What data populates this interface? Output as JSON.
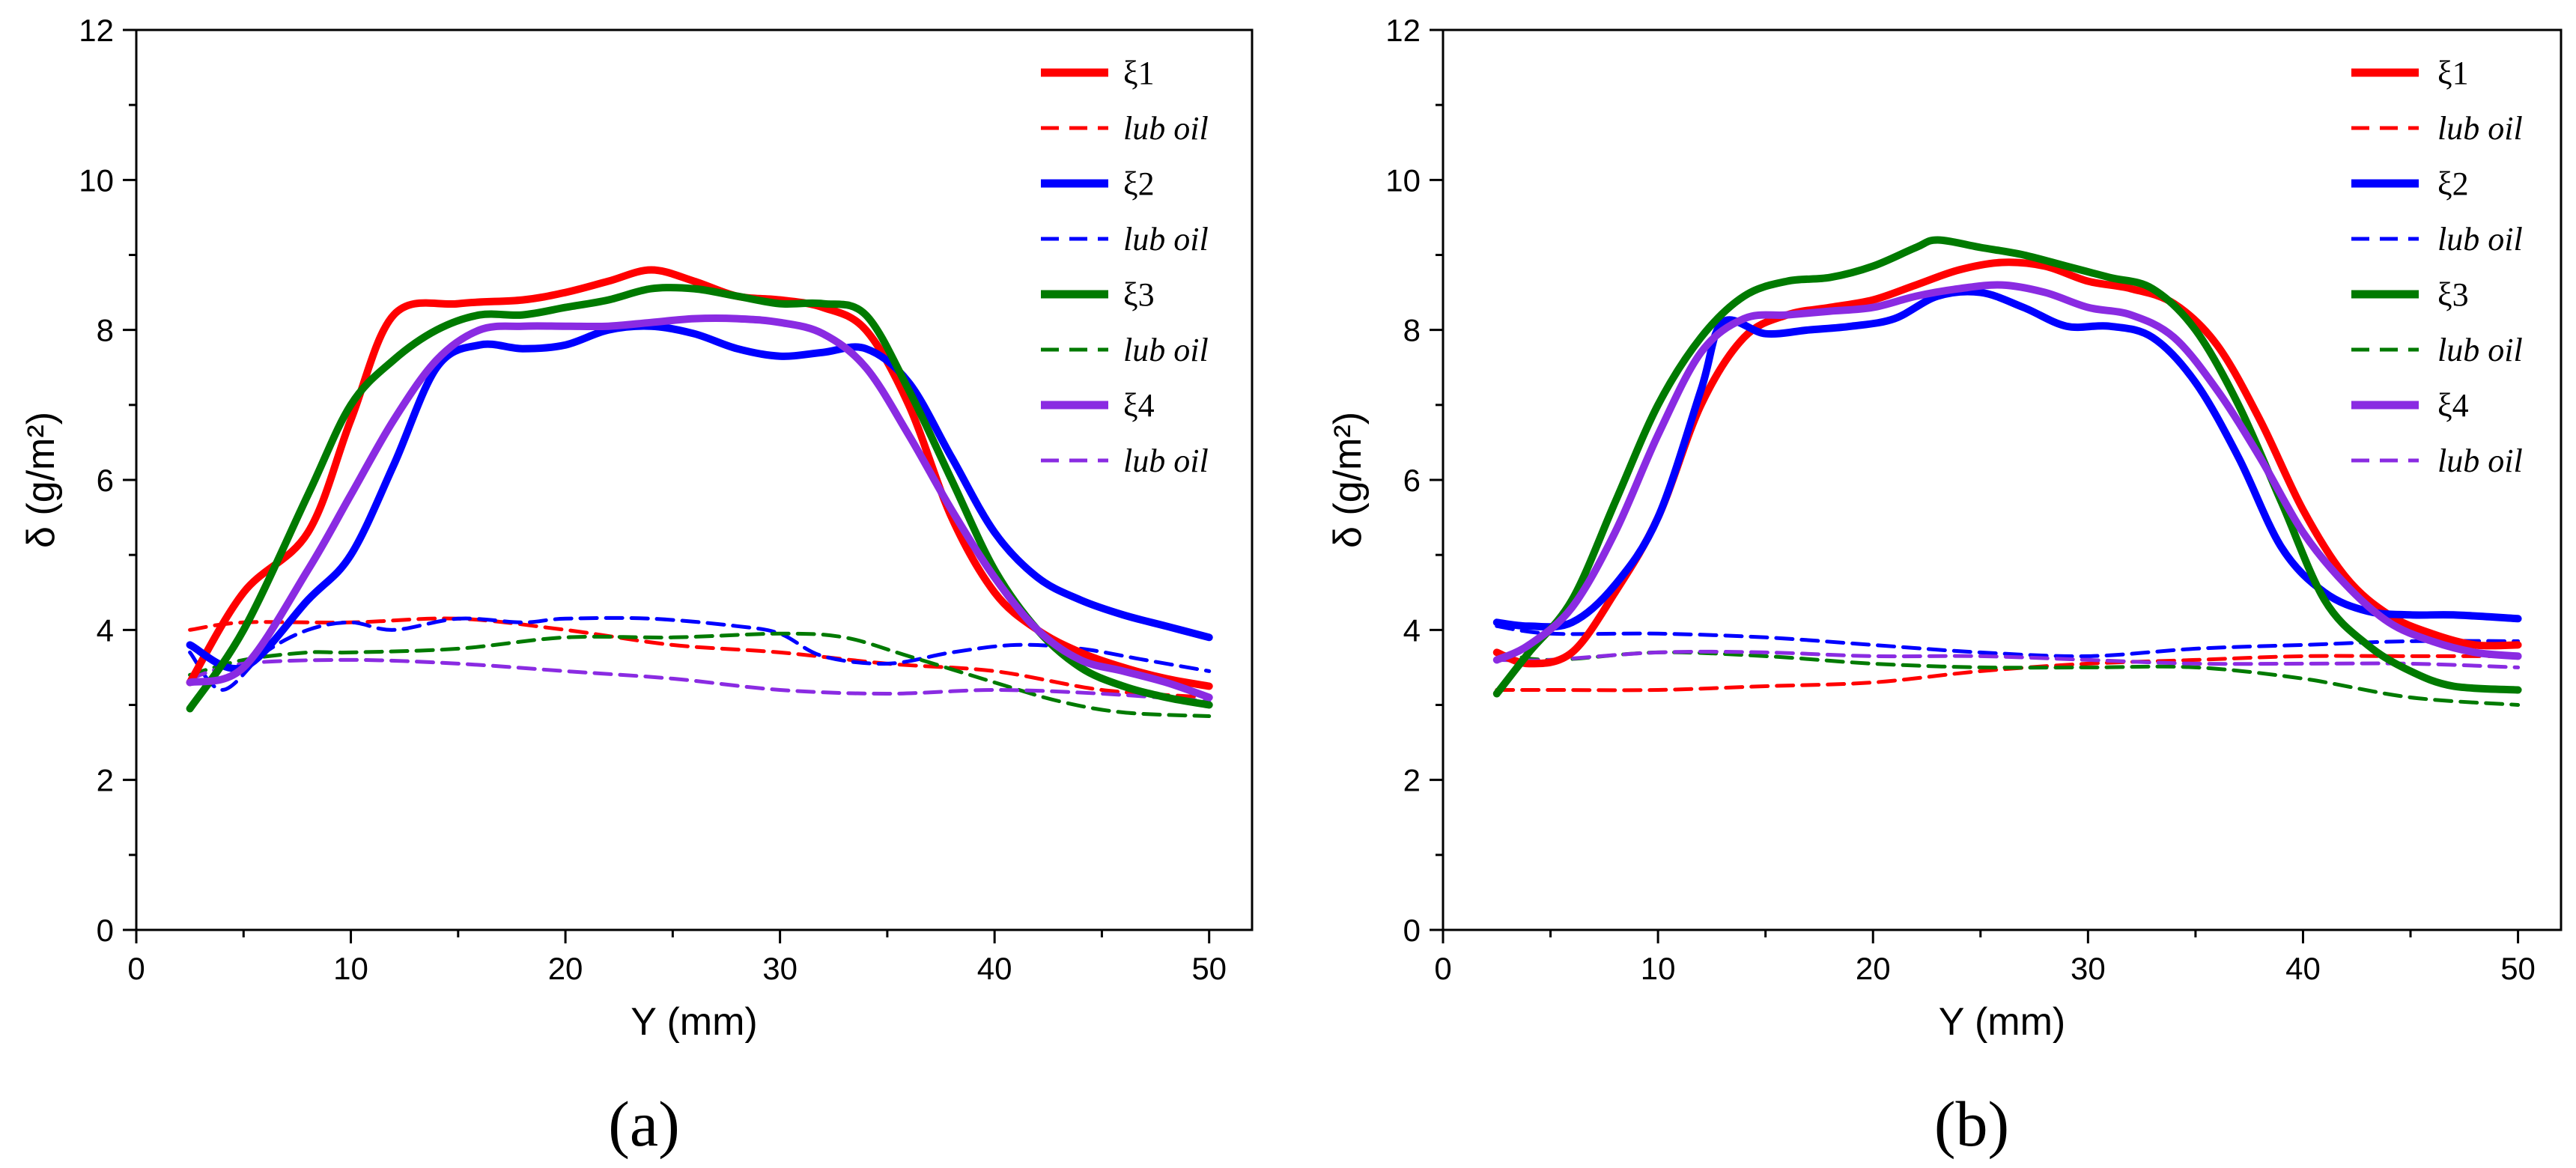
{
  "chart_data": [
    {
      "type": "line",
      "panel_label": "(a)",
      "xlabel": "Y (mm)",
      "ylabel": "δ (g/m²)",
      "xlim": [
        0,
        52
      ],
      "ylim": [
        0,
        12
      ],
      "xticks": [
        0,
        10,
        20,
        30,
        40,
        50
      ],
      "yticks": [
        0,
        2,
        4,
        6,
        8,
        10,
        12
      ],
      "legend_position": "top-right",
      "series": [
        {
          "name": "ξ1",
          "color": "#ff0000",
          "style": "solid",
          "x": [
            2.5,
            5,
            8,
            10,
            12,
            15,
            18,
            20,
            22,
            24,
            26,
            28,
            30,
            32,
            34,
            36,
            38,
            40,
            42,
            44,
            46,
            48,
            50
          ],
          "y": [
            3.3,
            4.5,
            5.3,
            6.8,
            8.2,
            8.35,
            8.4,
            8.5,
            8.65,
            8.8,
            8.65,
            8.45,
            8.4,
            8.3,
            8.0,
            7.0,
            5.5,
            4.5,
            4.0,
            3.7,
            3.5,
            3.35,
            3.25
          ]
        },
        {
          "name": "lub oil",
          "color": "#ff0000",
          "style": "dashed",
          "x": [
            2.5,
            5,
            10,
            15,
            20,
            25,
            30,
            35,
            40,
            45,
            50
          ],
          "y": [
            4.0,
            4.1,
            4.1,
            4.15,
            4.0,
            3.8,
            3.7,
            3.55,
            3.45,
            3.2,
            3.1
          ]
        },
        {
          "name": "ξ2",
          "color": "#0000ff",
          "style": "solid",
          "x": [
            2.5,
            5,
            8,
            10,
            12,
            14,
            16,
            18,
            20,
            22,
            24,
            26,
            28,
            30,
            32,
            34,
            36,
            38,
            40,
            42,
            44,
            46,
            48,
            50
          ],
          "y": [
            3.8,
            3.5,
            4.4,
            5.0,
            6.2,
            7.5,
            7.8,
            7.75,
            7.8,
            8.0,
            8.05,
            7.95,
            7.75,
            7.65,
            7.7,
            7.75,
            7.3,
            6.3,
            5.3,
            4.7,
            4.4,
            4.2,
            4.05,
            3.9
          ]
        },
        {
          "name": "lub oil",
          "color": "#0000ff",
          "style": "dashed",
          "x": [
            2.5,
            4,
            6,
            8,
            10,
            12,
            15,
            18,
            20,
            24,
            28,
            30,
            32,
            35,
            38,
            41,
            44,
            47,
            50
          ],
          "y": [
            3.7,
            3.2,
            3.7,
            4.0,
            4.1,
            4.0,
            4.15,
            4.1,
            4.15,
            4.15,
            4.05,
            3.95,
            3.65,
            3.55,
            3.7,
            3.8,
            3.75,
            3.6,
            3.45
          ]
        },
        {
          "name": "ξ3",
          "color": "#007a00",
          "style": "solid",
          "x": [
            2.5,
            5,
            8,
            10,
            12,
            14,
            16,
            18,
            20,
            22,
            24,
            26,
            28,
            30,
            32,
            34,
            36,
            38,
            40,
            42,
            44,
            46,
            48,
            50
          ],
          "y": [
            2.95,
            4.0,
            5.8,
            7.0,
            7.6,
            8.0,
            8.2,
            8.2,
            8.3,
            8.4,
            8.55,
            8.55,
            8.45,
            8.35,
            8.35,
            8.2,
            7.2,
            6.0,
            4.8,
            4.0,
            3.5,
            3.25,
            3.1,
            3.0
          ]
        },
        {
          "name": "lub oil",
          "color": "#007a00",
          "style": "dashed",
          "x": [
            2.5,
            5,
            8,
            10,
            15,
            20,
            25,
            30,
            33,
            36,
            40,
            43,
            46,
            50
          ],
          "y": [
            3.4,
            3.6,
            3.7,
            3.7,
            3.75,
            3.9,
            3.9,
            3.95,
            3.9,
            3.65,
            3.3,
            3.05,
            2.9,
            2.85
          ]
        },
        {
          "name": "ξ4",
          "color": "#8a2be2",
          "style": "solid",
          "x": [
            2.5,
            5,
            8,
            10,
            12,
            14,
            16,
            18,
            20,
            22,
            24,
            26,
            28,
            30,
            32,
            34,
            36,
            38,
            40,
            42,
            44,
            46,
            48,
            50
          ],
          "y": [
            3.3,
            3.5,
            4.8,
            5.8,
            6.8,
            7.6,
            8.0,
            8.05,
            8.05,
            8.05,
            8.1,
            8.15,
            8.15,
            8.1,
            7.95,
            7.5,
            6.6,
            5.6,
            4.7,
            4.0,
            3.6,
            3.45,
            3.3,
            3.1
          ]
        },
        {
          "name": "lub oil",
          "color": "#8a2be2",
          "style": "dashed",
          "x": [
            2.5,
            5,
            10,
            15,
            20,
            25,
            30,
            35,
            40,
            45,
            50
          ],
          "y": [
            3.35,
            3.55,
            3.6,
            3.55,
            3.45,
            3.35,
            3.2,
            3.15,
            3.2,
            3.15,
            3.05
          ]
        }
      ]
    },
    {
      "type": "line",
      "panel_label": "(b)",
      "xlabel": "Y (mm)",
      "ylabel": "δ (g/m²)",
      "xlim": [
        0,
        52
      ],
      "ylim": [
        0,
        12
      ],
      "xticks": [
        0,
        10,
        20,
        30,
        40,
        50
      ],
      "yticks": [
        0,
        2,
        4,
        6,
        8,
        10,
        12
      ],
      "legend_position": "top-right",
      "series": [
        {
          "name": "ξ1",
          "color": "#ff0000",
          "style": "solid",
          "x": [
            2.5,
            4,
            6,
            8,
            10,
            12,
            14,
            16,
            18,
            20,
            22,
            24,
            26,
            28,
            30,
            32,
            34,
            36,
            38,
            40,
            42,
            44,
            46,
            48,
            50
          ],
          "y": [
            3.7,
            3.55,
            3.7,
            4.5,
            5.5,
            7.0,
            7.9,
            8.2,
            8.3,
            8.4,
            8.6,
            8.8,
            8.9,
            8.85,
            8.65,
            8.55,
            8.35,
            7.8,
            6.8,
            5.6,
            4.7,
            4.2,
            3.95,
            3.8,
            3.8
          ]
        },
        {
          "name": "lub oil",
          "color": "#ff0000",
          "style": "dashed",
          "x": [
            2.5,
            5,
            10,
            15,
            20,
            25,
            30,
            35,
            40,
            45,
            50
          ],
          "y": [
            3.2,
            3.2,
            3.2,
            3.25,
            3.3,
            3.45,
            3.55,
            3.6,
            3.65,
            3.65,
            3.65
          ]
        },
        {
          "name": "ξ2",
          "color": "#0000ff",
          "style": "solid",
          "x": [
            2.5,
            4,
            6,
            8,
            10,
            12,
            13,
            15,
            17,
            19,
            21,
            23,
            25,
            27,
            29,
            31,
            33,
            35,
            37,
            39,
            41,
            43,
            45,
            47,
            50
          ],
          "y": [
            4.1,
            4.05,
            4.1,
            4.6,
            5.5,
            7.2,
            8.1,
            7.95,
            8.0,
            8.05,
            8.15,
            8.45,
            8.5,
            8.3,
            8.05,
            8.05,
            7.9,
            7.3,
            6.3,
            5.1,
            4.5,
            4.25,
            4.2,
            4.2,
            4.15
          ]
        },
        {
          "name": "lub oil",
          "color": "#0000ff",
          "style": "dashed",
          "x": [
            2.5,
            5,
            10,
            15,
            20,
            25,
            30,
            35,
            40,
            45,
            50
          ],
          "y": [
            4.05,
            3.95,
            3.95,
            3.9,
            3.8,
            3.7,
            3.65,
            3.75,
            3.8,
            3.85,
            3.85
          ]
        },
        {
          "name": "ξ3",
          "color": "#007a00",
          "style": "solid",
          "x": [
            2.5,
            4,
            6,
            8,
            10,
            12,
            14,
            16,
            18,
            20,
            22,
            23,
            25,
            27,
            29,
            31,
            33,
            35,
            37,
            39,
            41,
            43,
            45,
            47,
            50
          ],
          "y": [
            3.15,
            3.7,
            4.4,
            5.7,
            7.0,
            7.9,
            8.45,
            8.65,
            8.7,
            8.85,
            9.1,
            9.2,
            9.1,
            9.0,
            8.85,
            8.7,
            8.55,
            8.0,
            7.0,
            5.7,
            4.4,
            3.8,
            3.45,
            3.25,
            3.2
          ]
        },
        {
          "name": "lub oil",
          "color": "#007a00",
          "style": "dashed",
          "x": [
            2.5,
            5,
            10,
            15,
            20,
            25,
            30,
            35,
            40,
            45,
            50
          ],
          "y": [
            3.7,
            3.6,
            3.7,
            3.65,
            3.55,
            3.5,
            3.5,
            3.5,
            3.35,
            3.1,
            3.0
          ]
        },
        {
          "name": "ξ4",
          "color": "#8a2be2",
          "style": "solid",
          "x": [
            2.5,
            4,
            6,
            8,
            10,
            12,
            14,
            16,
            18,
            20,
            22,
            24,
            26,
            28,
            30,
            32,
            34,
            36,
            38,
            40,
            42,
            44,
            46,
            48,
            50
          ],
          "y": [
            3.6,
            3.8,
            4.3,
            5.3,
            6.6,
            7.7,
            8.15,
            8.2,
            8.25,
            8.3,
            8.45,
            8.55,
            8.6,
            8.5,
            8.3,
            8.2,
            7.9,
            7.2,
            6.3,
            5.3,
            4.6,
            4.1,
            3.85,
            3.7,
            3.65
          ]
        },
        {
          "name": "lub oil",
          "color": "#8a2be2",
          "style": "dashed",
          "x": [
            2.5,
            5,
            10,
            15,
            20,
            25,
            30,
            35,
            40,
            45,
            50
          ],
          "y": [
            3.6,
            3.6,
            3.7,
            3.7,
            3.65,
            3.65,
            3.6,
            3.55,
            3.55,
            3.55,
            3.5
          ]
        }
      ]
    }
  ]
}
